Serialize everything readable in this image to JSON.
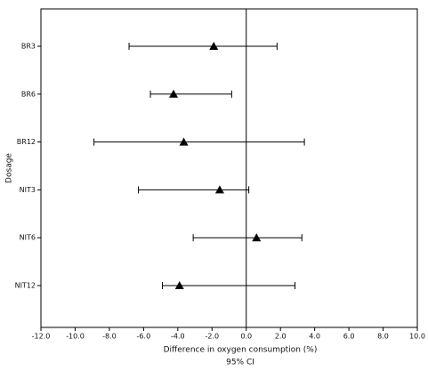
{
  "chart_data": {
    "type": "forest",
    "xlabel": "Difference in oxygen consumption (%)",
    "subxlabel": "95% CI",
    "ylabel": "Dosage",
    "categories": [
      "BR3",
      "BR6",
      "BR12",
      "NIT3",
      "NIT6",
      "NIT12"
    ],
    "values": [
      -1.9,
      -4.25,
      -3.65,
      -1.55,
      0.6,
      -3.9
    ],
    "lower": [
      -6.85,
      -5.6,
      -8.9,
      -6.3,
      -3.1,
      -4.9
    ],
    "upper": [
      1.8,
      -0.85,
      3.4,
      0.15,
      3.25,
      2.85
    ],
    "color": "#000000",
    "reference_line": 0,
    "xlim": [
      -12,
      10
    ],
    "xticks": [
      {
        "value": -12,
        "label": "-12.0"
      },
      {
        "value": -10,
        "label": "-10.0"
      },
      {
        "value": -8,
        "label": "-8.0"
      },
      {
        "value": -6,
        "label": "-6.0"
      },
      {
        "value": -4,
        "label": "-4.0"
      },
      {
        "value": -2,
        "label": "-2.0"
      },
      {
        "value": 0,
        "label": "0.0"
      },
      {
        "value": 2,
        "label": "2.0"
      },
      {
        "value": 4,
        "label": "4.0"
      },
      {
        "value": 6,
        "label": "6.0"
      },
      {
        "value": 8,
        "label": "8.0"
      },
      {
        "value": 10,
        "label": "10.0"
      }
    ]
  }
}
